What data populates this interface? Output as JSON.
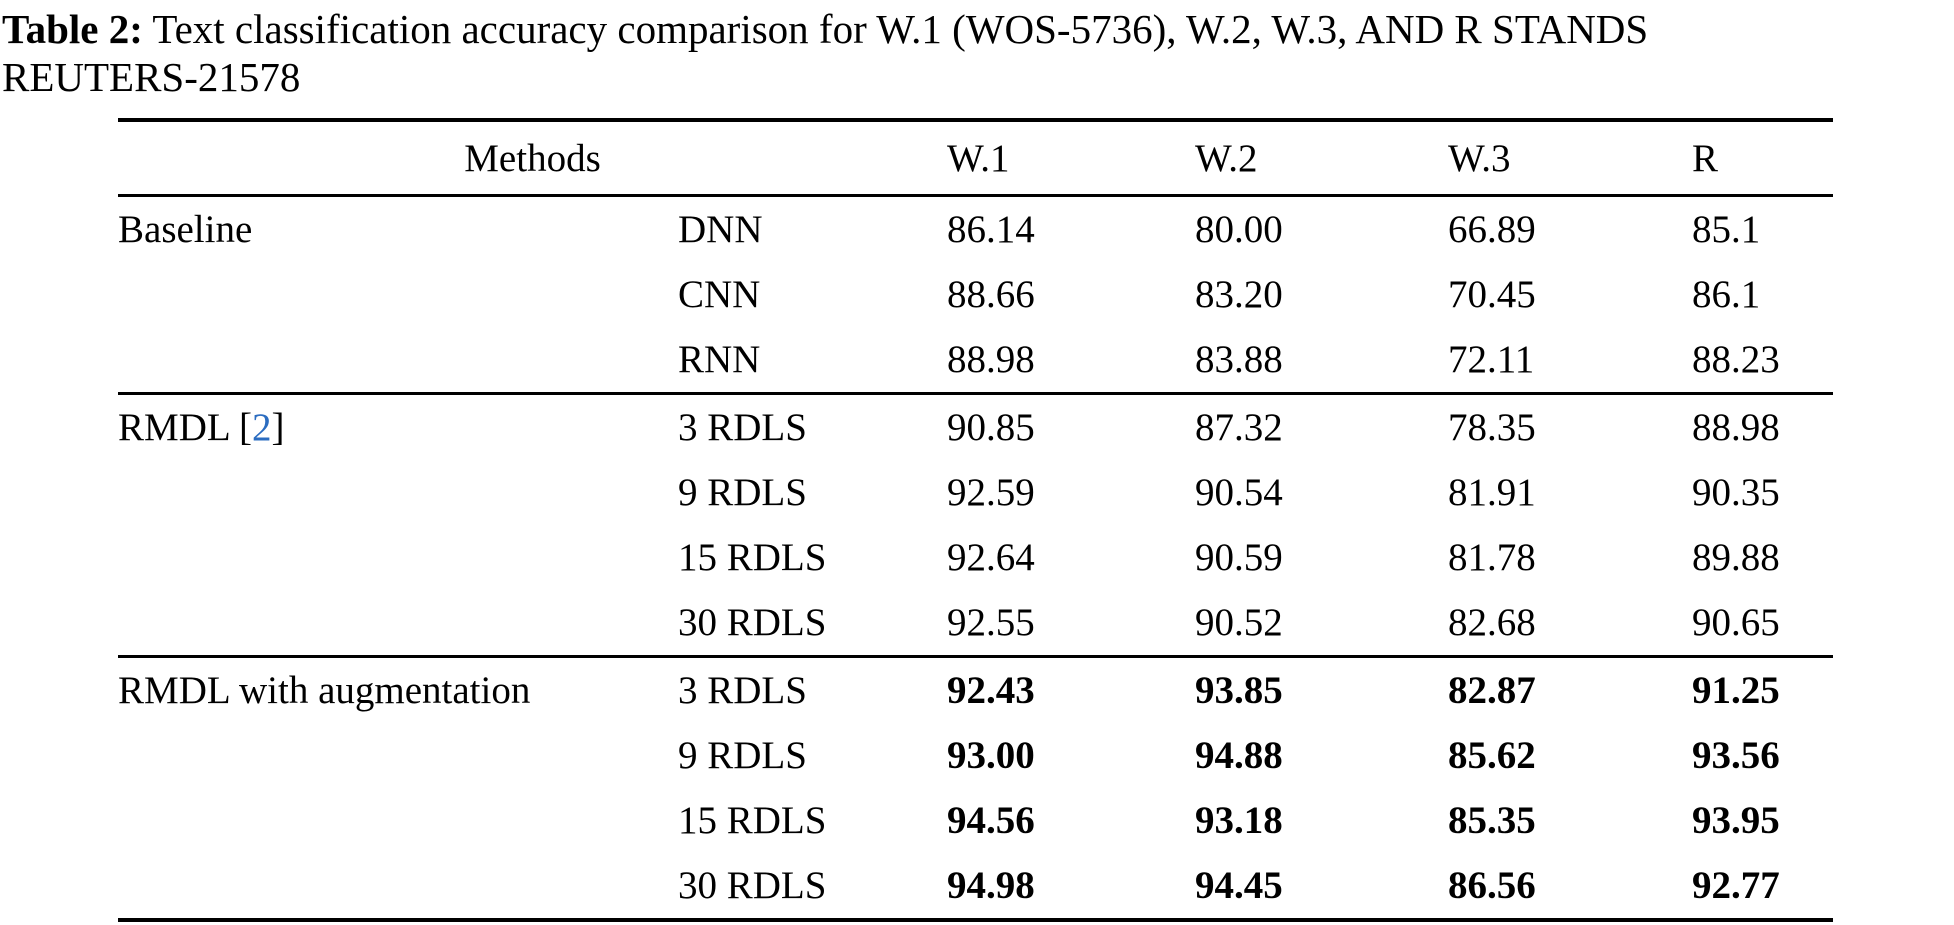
{
  "caption": {
    "label": "Table 2:",
    "line1": " Text classification accuracy comparison for W.1 (WOS-5736), W.2, W.3, AND R STANDS",
    "line2": "REUTERS-21578"
  },
  "colors": {
    "citation": "#2b6cc0",
    "text": "#000000",
    "background": "#ffffff"
  },
  "table": {
    "header": {
      "methods": "Methods",
      "cols": [
        "W.1",
        "W.2",
        "W.3",
        "R"
      ]
    },
    "rows": [
      {
        "group": "Baseline",
        "method": "DNN",
        "w1": "86.14",
        "w2": "80.00",
        "w3": "66.89",
        "r": "85.1"
      },
      {
        "group": "",
        "method": "CNN",
        "w1": "88.66",
        "w2": "83.20",
        "w3": "70.45",
        "r": "86.1"
      },
      {
        "group": "",
        "method": "RNN",
        "w1": "88.98",
        "w2": "83.88",
        "w3": "72.11",
        "r": "88.23"
      },
      {
        "group_prefix": "RMDL [",
        "citation": "2",
        "group_suffix": "]",
        "method": "3 RDLS",
        "w1": "90.85",
        "w2": "87.32",
        "w3": "78.35",
        "r": "88.98"
      },
      {
        "group": "",
        "method": "9 RDLS",
        "w1": "92.59",
        "w2": "90.54",
        "w3": "81.91",
        "r": "90.35"
      },
      {
        "group": "",
        "method": "15 RDLS",
        "w1": "92.64",
        "w2": "90.59",
        "w3": "81.78",
        "r": "89.88"
      },
      {
        "group": "",
        "method": "30 RDLS",
        "w1": "92.55",
        "w2": "90.52",
        "w3": "82.68",
        "r": "90.65"
      },
      {
        "group": "RMDL with augmentation",
        "method": "3 RDLS",
        "w1": "92.43",
        "w2": "93.85",
        "w3": "82.87",
        "r": "91.25"
      },
      {
        "group": "",
        "method": "9 RDLS",
        "w1": "93.00",
        "w2": "94.88",
        "w3": "85.62",
        "r": "93.56"
      },
      {
        "group": "",
        "method": "15 RDLS",
        "w1": "94.56",
        "w2": "93.18",
        "w3": "85.35",
        "r": "93.95"
      },
      {
        "group": "",
        "method": "30 RDLS",
        "w1": "94.98",
        "w2": "94.45",
        "w3": "86.56",
        "r": "92.77"
      }
    ]
  }
}
